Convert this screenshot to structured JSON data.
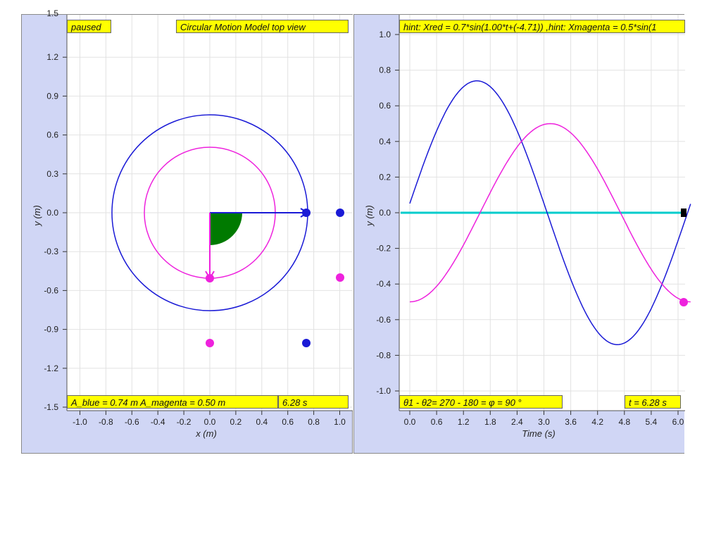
{
  "left_panel": {
    "status": "paused",
    "title": "Circular Motion Model top view",
    "amplitude_label": "A_blue = 0.74 m A_magenta = 0.50 m",
    "time_label": "6.28 s",
    "x_axis_label": "x (m)",
    "y_axis_label": "y (m)",
    "x_ticks": [
      "-1.0",
      "-0.8",
      "-0.6",
      "-0.4",
      "-0.2",
      "0.0",
      "0.2",
      "0.4",
      "0.6",
      "0.8",
      "1.0"
    ],
    "y_ticks": [
      "1.2",
      "0.9",
      "0.6",
      "0.3",
      "0.0",
      "-0.3",
      "-0.6",
      "-0.9",
      "-1.2",
      "-1.5"
    ],
    "y_top_tick_partial": "1.5"
  },
  "right_panel": {
    "hint": "hint: Xred = 0.7*sin(1.00*t+(-4.71)) ,hint: Xmagenta = 0.5*sin(1",
    "phase_label": "θ1 - θ2= 270 - 180 = φ = 90 °",
    "time_label": "t = 6.28 s",
    "x_axis_label": "Time (s)",
    "y_axis_label": "y (m)",
    "x_ticks": [
      "0.0",
      "0.6",
      "1.2",
      "1.8",
      "2.4",
      "3.0",
      "3.6",
      "4.2",
      "4.8",
      "5.4",
      "6.0"
    ],
    "y_ticks": [
      "1.0",
      "0.8",
      "0.6",
      "0.4",
      "0.2",
      "0.0",
      "-0.2",
      "-0.4",
      "-0.6",
      "-0.8",
      "-1.0"
    ]
  },
  "colors": {
    "blue": "#1a1ad6",
    "magenta": "#ee22dd",
    "green": "#007a00",
    "cyan": "#00cccc",
    "label_bg": "#ffff00",
    "panel_bg": "#d0d6f5"
  }
}
